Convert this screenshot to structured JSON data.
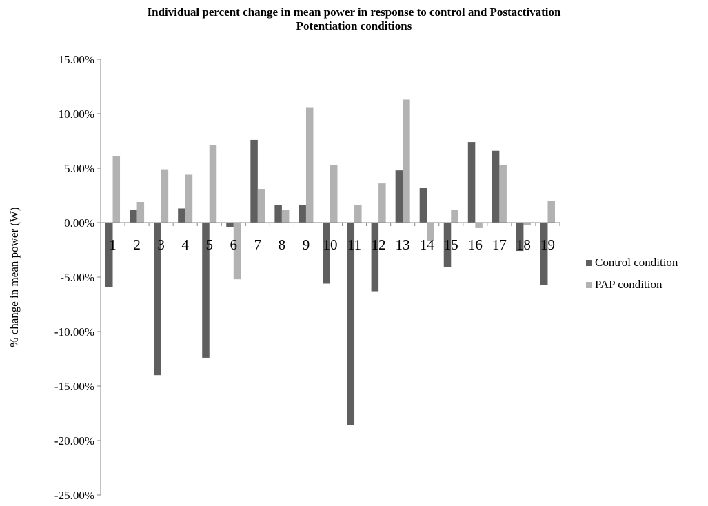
{
  "chart_data": {
    "type": "bar",
    "title_lines": [
      "Individual percent change in mean power in response to control and Postactivation",
      "Potentiation conditions"
    ],
    "xlabel": "",
    "ylabel": "% change in mean power (W)",
    "ylim": [
      -25,
      15
    ],
    "yticks": [
      "15.00%",
      "10.00%",
      "5.00%",
      "0.00%",
      "-5.00%",
      "-10.00%",
      "-15.00%",
      "-20.00%",
      "-25.00%"
    ],
    "ytick_values": [
      15,
      10,
      5,
      0,
      -5,
      -10,
      -15,
      -20,
      -25
    ],
    "categories": [
      "1",
      "2",
      "3",
      "4",
      "5",
      "6",
      "7",
      "8",
      "9",
      "10",
      "11",
      "12",
      "13",
      "14",
      "15",
      "16",
      "17",
      "18",
      "19"
    ],
    "series": [
      {
        "name": "Control condition",
        "color": "#5f5f5f",
        "values": [
          -5.9,
          1.2,
          -14.0,
          1.3,
          -12.4,
          -0.4,
          7.6,
          1.6,
          1.6,
          -5.6,
          -18.6,
          -6.3,
          4.8,
          3.2,
          -4.1,
          7.4,
          6.6,
          -2.6,
          -5.7
        ]
      },
      {
        "name": "PAP condition",
        "color": "#b2b2b2",
        "values": [
          6.1,
          1.9,
          4.9,
          4.4,
          7.1,
          -5.2,
          3.1,
          1.2,
          10.6,
          5.3,
          1.6,
          3.6,
          11.3,
          -1.7,
          1.2,
          -0.5,
          5.3,
          -0.2,
          2.0
        ]
      }
    ],
    "grid": false,
    "legend_position": "right"
  }
}
